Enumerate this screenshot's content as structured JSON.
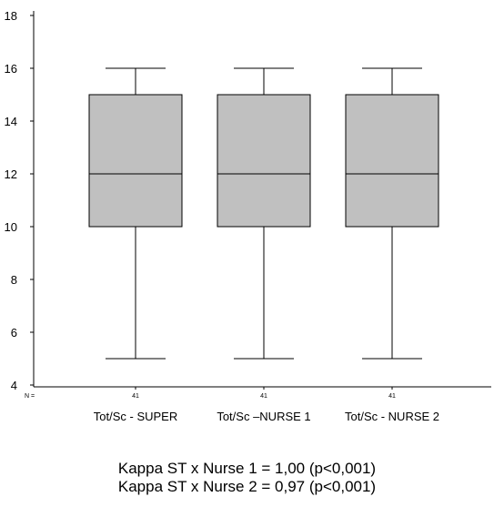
{
  "chart_data": {
    "type": "box",
    "y_ticks": [
      "4",
      "6",
      "8",
      "10",
      "12",
      "14",
      "16",
      "18"
    ],
    "ylim": [
      4,
      18
    ],
    "n_label": "N =",
    "grid": false,
    "series": [
      {
        "label": "Tot/Sc - SUPER",
        "n": "41",
        "min": 5,
        "q1": 10,
        "median": 12,
        "q3": 15,
        "max": 16
      },
      {
        "label": "Tot/Sc –NURSE 1",
        "n": "41",
        "min": 5,
        "q1": 10,
        "median": 12,
        "q3": 15,
        "max": 16
      },
      {
        "label": "Tot/Sc - NURSE 2",
        "n": "41",
        "min": 5,
        "q1": 10,
        "median": 12,
        "q3": 15,
        "max": 16
      }
    ],
    "box_color": "#c0c0c0"
  },
  "footer": {
    "line1": "Kappa ST x Nurse 1 = 1,00 (p<0,001)",
    "line2": "Kappa ST x Nurse 2 = 0,97 (p<0,001)"
  }
}
